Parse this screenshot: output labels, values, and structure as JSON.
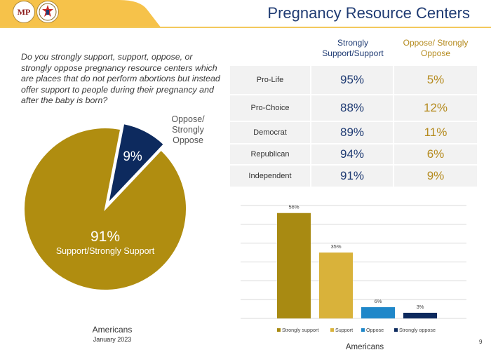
{
  "header": {
    "logo_text": "MP",
    "title": "Pregnancy Resource Centers",
    "colors": {
      "navy": "#1f3b73",
      "gold": "#b58b1f"
    }
  },
  "question": "Do you strongly support, support, oppose, or strongly oppose pregnancy resource centers which are places that do not perform abortions but instead offer support to people during their pregnancy and after the baby is born?",
  "caption": {
    "group": "Americans",
    "date": "January 2023"
  },
  "table": {
    "columns": [
      "",
      "Strongly Support/Support",
      "Oppose/ Strongly Oppose"
    ],
    "rows": [
      {
        "label": "Pro-Life",
        "support": "95%",
        "oppose": "5%"
      },
      {
        "label": "Pro-Choice",
        "support": "88%",
        "oppose": "12%"
      },
      {
        "label": "Democrat",
        "support": "89%",
        "oppose": "11%"
      },
      {
        "label": "Republican",
        "support": "94%",
        "oppose": "6%"
      },
      {
        "label": "Independent",
        "support": "91%",
        "oppose": "9%"
      }
    ]
  },
  "page_number": "9",
  "chart_data": [
    {
      "type": "pie",
      "slices": [
        {
          "label": "Support/Strongly Support",
          "value": 91,
          "value_label": "91%",
          "color": "#b08d10"
        },
        {
          "label": "Oppose/ Strongly Oppose",
          "value": 9,
          "value_label": "9%",
          "color": "#0d2a5e"
        }
      ]
    },
    {
      "type": "bar",
      "categories": [
        "Strongly support",
        "Support",
        "Oppose",
        "Strongly oppose"
      ],
      "values": [
        56,
        35,
        6,
        3
      ],
      "value_labels": [
        "56%",
        "35%",
        "6%",
        "3%"
      ],
      "colors": [
        "#a88a12",
        "#d9b23a",
        "#1f87c9",
        "#0d2a5e"
      ],
      "xlabel": "Americans",
      "ylim": [
        0,
        60
      ],
      "grid": true,
      "legend": "bottom"
    }
  ]
}
